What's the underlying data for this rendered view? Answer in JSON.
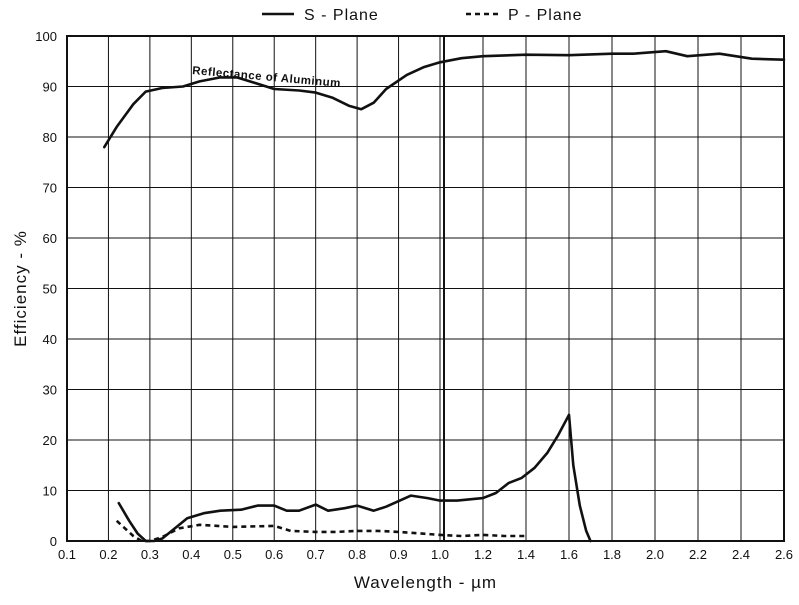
{
  "chart_data": {
    "type": "line",
    "xlabel": "Wavelength - µm",
    "ylabel": "Efficiency - %",
    "ylim": [
      0,
      100
    ],
    "grid": true,
    "legend_placement": "top",
    "x_segments": [
      {
        "from": 0.1,
        "to": 1.0,
        "tick_step": 0.1
      },
      {
        "from": 1.0,
        "to": 2.6,
        "tick_step": 0.2
      }
    ],
    "x_ticks": [
      "0.1",
      "0.2",
      "0.3",
      "0.4",
      "0.5",
      "0.6",
      "0.7",
      "0.8",
      "0.9",
      "1.0",
      "1.2",
      "1.4",
      "1.6",
      "1.8",
      "2.0",
      "2.2",
      "2.4",
      "2.6"
    ],
    "y_ticks": [
      "0",
      "10",
      "20",
      "30",
      "40",
      "50",
      "60",
      "70",
      "80",
      "90",
      "100"
    ],
    "annotation": "Reflectance of Aluminum",
    "series": [
      {
        "name": "S - Plane",
        "style": "solid",
        "color": "#111111",
        "points": [
          [
            0.225,
            7.5
          ],
          [
            0.25,
            4
          ],
          [
            0.27,
            1.5
          ],
          [
            0.29,
            0
          ],
          [
            0.31,
            0
          ],
          [
            0.33,
            0.5
          ],
          [
            0.36,
            2.5
          ],
          [
            0.39,
            4.5
          ],
          [
            0.43,
            5.5
          ],
          [
            0.47,
            6
          ],
          [
            0.52,
            6.2
          ],
          [
            0.56,
            7
          ],
          [
            0.6,
            7
          ],
          [
            0.63,
            6
          ],
          [
            0.66,
            6
          ],
          [
            0.7,
            7.2
          ],
          [
            0.73,
            6
          ],
          [
            0.77,
            6.5
          ],
          [
            0.8,
            7
          ],
          [
            0.84,
            6
          ],
          [
            0.87,
            6.8
          ],
          [
            0.93,
            9
          ],
          [
            0.97,
            8.5
          ],
          [
            1.0,
            8
          ],
          [
            1.08,
            8
          ],
          [
            1.2,
            8.5
          ],
          [
            1.26,
            9.5
          ],
          [
            1.32,
            11.5
          ],
          [
            1.38,
            12.5
          ],
          [
            1.44,
            14.5
          ],
          [
            1.5,
            17.5
          ],
          [
            1.55,
            21
          ],
          [
            1.6,
            25
          ],
          [
            1.62,
            15
          ],
          [
            1.65,
            7
          ],
          [
            1.68,
            2
          ],
          [
            1.7,
            0
          ]
        ]
      },
      {
        "name": "P - Plane",
        "style": "dashed",
        "color": "#111111",
        "points": [
          [
            0.22,
            4
          ],
          [
            0.24,
            2.5
          ],
          [
            0.26,
            1
          ],
          [
            0.28,
            0
          ],
          [
            0.3,
            0
          ],
          [
            0.33,
            0.8
          ],
          [
            0.37,
            2.5
          ],
          [
            0.42,
            3.2
          ],
          [
            0.5,
            2.8
          ],
          [
            0.6,
            3
          ],
          [
            0.64,
            2
          ],
          [
            0.7,
            1.8
          ],
          [
            0.75,
            1.8
          ],
          [
            0.8,
            2
          ],
          [
            0.85,
            2
          ],
          [
            0.9,
            1.8
          ],
          [
            0.95,
            1.5
          ],
          [
            1.0,
            1.2
          ],
          [
            1.1,
            1
          ],
          [
            1.2,
            1.2
          ],
          [
            1.3,
            1
          ],
          [
            1.4,
            1
          ]
        ]
      },
      {
        "name": "Reflectance of Aluminum",
        "style": "solid",
        "color": "#111111",
        "points": [
          [
            0.19,
            78
          ],
          [
            0.22,
            82
          ],
          [
            0.26,
            86.5
          ],
          [
            0.29,
            89
          ],
          [
            0.33,
            89.7
          ],
          [
            0.38,
            90
          ],
          [
            0.42,
            91
          ],
          [
            0.47,
            91.8
          ],
          [
            0.51,
            91.8
          ],
          [
            0.55,
            90.8
          ],
          [
            0.6,
            89.5
          ],
          [
            0.66,
            89.2
          ],
          [
            0.7,
            88.8
          ],
          [
            0.74,
            87.8
          ],
          [
            0.78,
            86.2
          ],
          [
            0.81,
            85.5
          ],
          [
            0.84,
            86.8
          ],
          [
            0.87,
            89.5
          ],
          [
            0.92,
            92.3
          ],
          [
            0.96,
            93.8
          ],
          [
            1.0,
            94.8
          ],
          [
            1.1,
            95.6
          ],
          [
            1.2,
            96
          ],
          [
            1.4,
            96.3
          ],
          [
            1.6,
            96.2
          ],
          [
            1.8,
            96.5
          ],
          [
            1.9,
            96.5
          ],
          [
            2.05,
            97
          ],
          [
            2.15,
            96
          ],
          [
            2.3,
            96.5
          ],
          [
            2.45,
            95.5
          ],
          [
            2.6,
            95.3
          ]
        ]
      }
    ]
  }
}
